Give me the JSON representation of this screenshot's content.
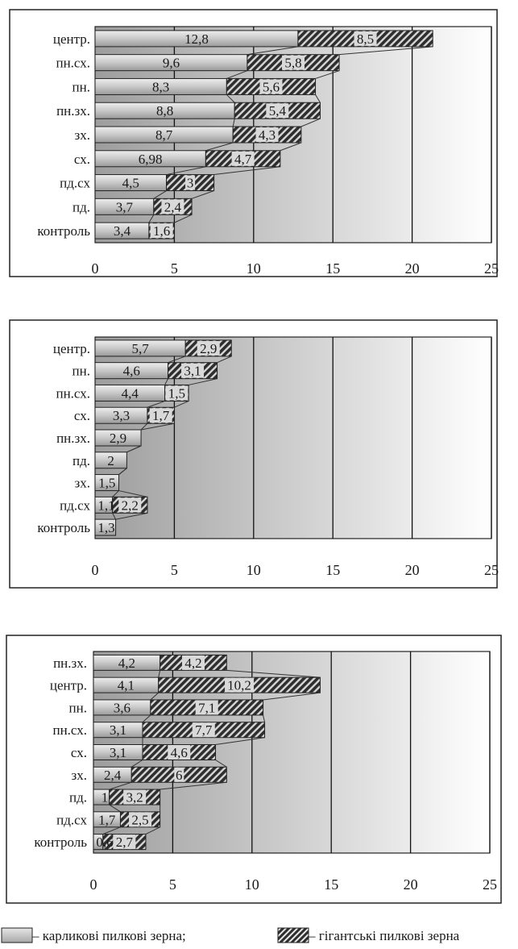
{
  "chart_data": [
    {
      "type": "bar",
      "stacked": true,
      "orientation": "horizontal",
      "categories": [
        "центр.",
        "пн.сх.",
        "пн.",
        "пн.зх.",
        "зх.",
        "сх.",
        "пд.сх",
        "пд.",
        "контроль"
      ],
      "series": [
        {
          "name": "карликові пилкові зерна",
          "values": [
            12.8,
            9.6,
            8.3,
            8.8,
            8.7,
            6.98,
            4.5,
            3.7,
            3.4
          ],
          "labels": [
            "12,8",
            "9,6",
            "8,3",
            "8,8",
            "8,7",
            "6,98",
            "4,5",
            "3,7",
            "3,4"
          ]
        },
        {
          "name": "гігантські пилкові зерна",
          "values": [
            8.5,
            5.8,
            5.6,
            5.4,
            4.3,
            4.7,
            3,
            2.4,
            1.6
          ],
          "labels": [
            "8,5",
            "5,8",
            "5,6",
            "5,4",
            "4,3",
            "4,7",
            "3",
            "2,4",
            "1,6"
          ]
        }
      ],
      "xlim": [
        0,
        25
      ],
      "ticks": [
        "0",
        "5",
        "10",
        "15",
        "20",
        "25"
      ],
      "grid": true
    },
    {
      "type": "bar",
      "stacked": true,
      "orientation": "horizontal",
      "categories": [
        "центр.",
        "пн.",
        "пн.сх.",
        "сх.",
        "пн.зх.",
        "пд.",
        "зх.",
        "пд.сх",
        "контроль"
      ],
      "series": [
        {
          "name": "карликові пилкові зерна",
          "values": [
            5.7,
            4.6,
            4.4,
            3.3,
            2.9,
            2,
            1.5,
            1.1,
            1.3
          ],
          "labels": [
            "5,7",
            "4,6",
            "4,4",
            "3,3",
            "2,9",
            "2",
            "1,5",
            "1,1",
            "1,3"
          ]
        },
        {
          "name": "гігантські пилкові зерна",
          "values": [
            2.9,
            3.1,
            1.5,
            1.7,
            0,
            0,
            0,
            2.2,
            0
          ],
          "labels": [
            "2,9",
            "3,1",
            "1,5",
            "1,7",
            "",
            "",
            "",
            "2,2",
            ""
          ]
        }
      ],
      "xlim": [
        0,
        25
      ],
      "ticks": [
        "0",
        "5",
        "10",
        "15",
        "20",
        "25"
      ],
      "grid": true
    },
    {
      "type": "bar",
      "stacked": true,
      "orientation": "horizontal",
      "categories": [
        "пн.зх.",
        "центр.",
        "пн.",
        "пн.сх.",
        "сх.",
        "зх.",
        "пд.",
        "пд.сх",
        "контроль"
      ],
      "series": [
        {
          "name": "карликові пилкові зерна",
          "values": [
            4.2,
            4.1,
            3.6,
            3.1,
            3.1,
            2.4,
            1,
            1.7,
            0.6
          ],
          "labels": [
            "4,2",
            "4,1",
            "3,6",
            "3,1",
            "3,1",
            "2,4",
            "1",
            "1,7",
            "0,6"
          ]
        },
        {
          "name": "гігантські пилкові зерна",
          "values": [
            4.2,
            10.2,
            7.1,
            7.7,
            4.6,
            6,
            3.2,
            2.5,
            2.7
          ],
          "labels": [
            "4,2",
            "10,2",
            "7,1",
            "7,7",
            "4,6",
            "6",
            "3,2",
            "2,5",
            "2,7"
          ]
        }
      ],
      "xlim": [
        0,
        25
      ],
      "ticks": [
        "0",
        "5",
        "10",
        "15",
        "20",
        "25"
      ],
      "grid": true
    }
  ],
  "legend": {
    "dwarf": "– карликові пилкові зерна;",
    "giant": "– гігантські пилкові зерна"
  },
  "colors": {
    "dwarf_fill": "#c8c8c8",
    "giant_fill": "#2e2e2e",
    "gridline": "#111111",
    "plot_bg_dark": "#9d9d9d",
    "plot_bg_light": "#ffffff",
    "bar_label_bg": "#d9d9d9"
  }
}
